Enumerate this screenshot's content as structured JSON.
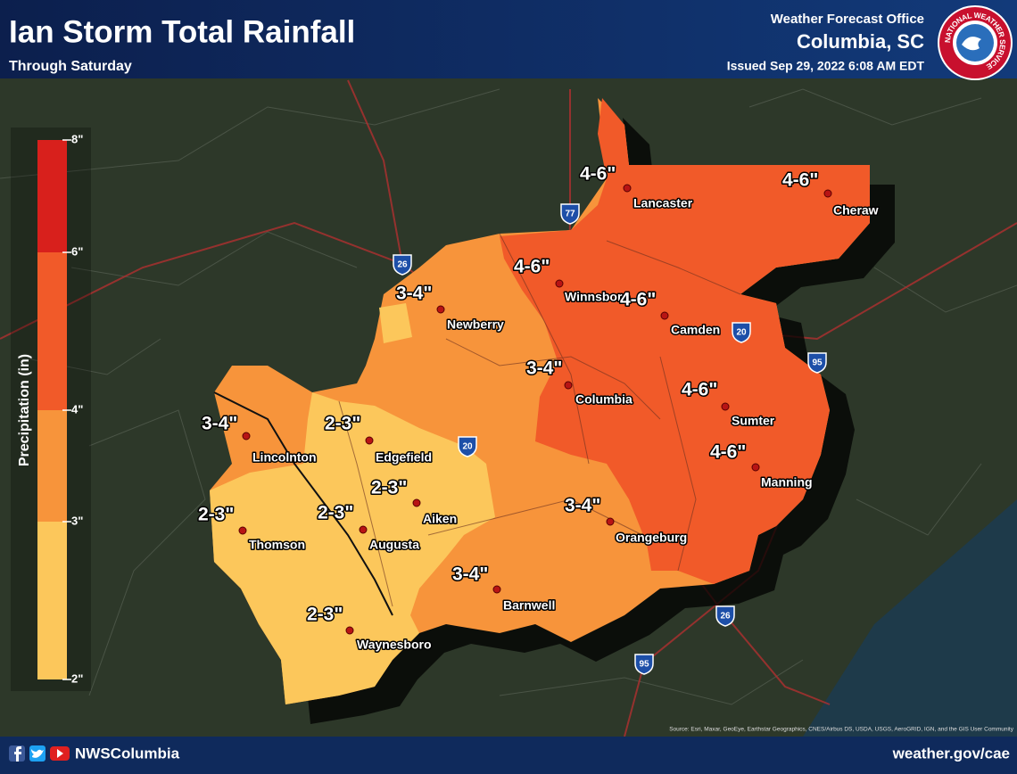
{
  "header": {
    "title": "Ian Storm Total Rainfall",
    "subtitle": "Through Saturday",
    "office": "Weather Forecast Office",
    "location": "Columbia, SC",
    "issued": "Issued Sep 29, 2022 6:08 AM EDT"
  },
  "logo_text": "NATIONAL WEATHER SERVICE",
  "legend": {
    "title": "Precipitation (in)",
    "ticks": [
      {
        "value": 8,
        "label": "8\""
      },
      {
        "value": 6,
        "label": "6\""
      },
      {
        "value": 4,
        "label": "4\""
      },
      {
        "value": 3,
        "label": "3\""
      },
      {
        "value": 2,
        "label": "2\""
      }
    ],
    "colors": [
      "#d8201c",
      "#f15a29",
      "#f7943b",
      "#fcc75b"
    ]
  },
  "cities": [
    {
      "name": "Lancaster",
      "amount": "4-6\""
    },
    {
      "name": "Cheraw",
      "amount": "4-6\""
    },
    {
      "name": "Winnsboro",
      "amount": "4-6\""
    },
    {
      "name": "Camden",
      "amount": "4-6\""
    },
    {
      "name": "Newberry",
      "amount": "3-4\""
    },
    {
      "name": "Columbia",
      "amount": "3-4\""
    },
    {
      "name": "Sumter",
      "amount": "4-6\""
    },
    {
      "name": "Manning",
      "amount": "4-6\""
    },
    {
      "name": "Lincolnton",
      "amount": "3-4\""
    },
    {
      "name": "Edgefield",
      "amount": "2-3\""
    },
    {
      "name": "Aiken",
      "amount": "2-3\""
    },
    {
      "name": "Thomson",
      "amount": "2-3\""
    },
    {
      "name": "Augusta",
      "amount": "2-3\""
    },
    {
      "name": "Orangeburg",
      "amount": "3-4\""
    },
    {
      "name": "Barnwell",
      "amount": "3-4\""
    },
    {
      "name": "Waynesboro",
      "amount": "2-3\""
    }
  ],
  "highways": [
    "26",
    "77",
    "20",
    "95",
    "20",
    "26",
    "95"
  ],
  "footer": {
    "handle": "NWSColumbia",
    "url": "weather.gov/cae",
    "source": "Source: Esri, Maxar, GeoEye, Earthstar Geographics, CNES/Airbus DS, USDA, USGS, AeroGRID, IGN, and the GIS User Community"
  }
}
